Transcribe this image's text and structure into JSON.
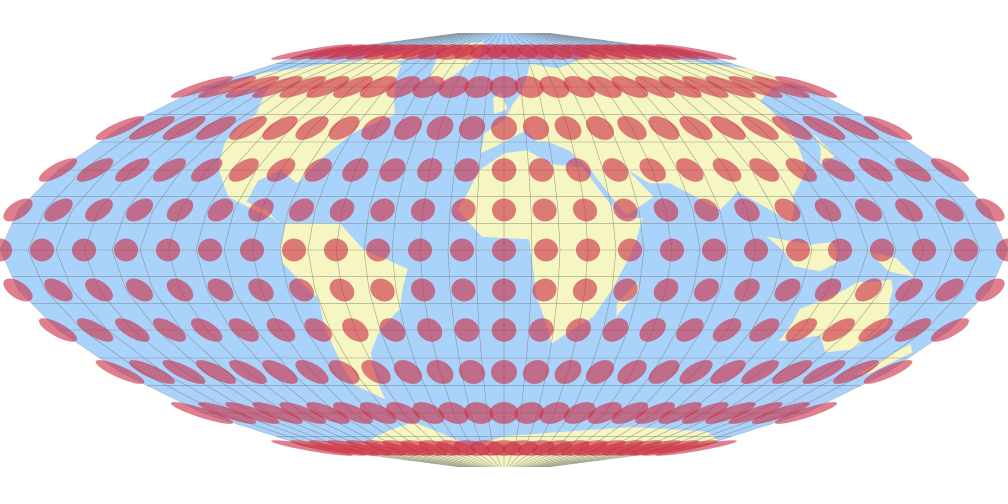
{
  "map": {
    "colors": {
      "ocean": "#aad3fb",
      "land": "#f6f6c2",
      "graticule": "#7a7a7a",
      "tissot": "#cc2f45",
      "background": "#ffffff"
    },
    "graticule_step_deg": 10,
    "tissot": {
      "lat_step_deg": 15,
      "lon_step_deg": 15,
      "max_lat_deg": 75,
      "radius_deg": 4.3,
      "opacity": 0.62
    }
  }
}
